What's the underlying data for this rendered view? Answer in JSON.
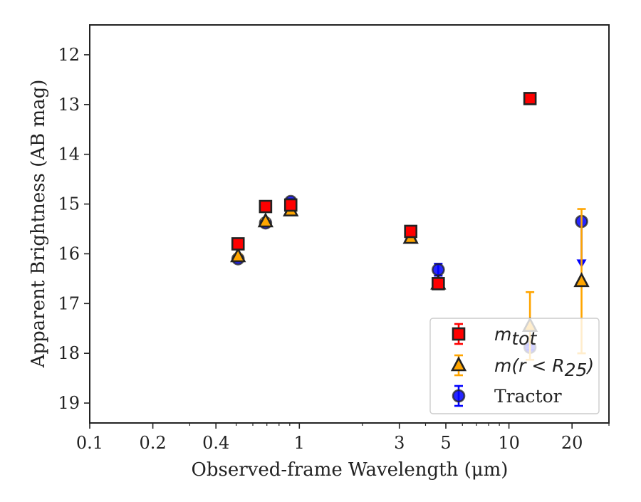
{
  "chart_data": {
    "type": "scatter",
    "xlabel": "Observed-frame Wavelength (μm)",
    "ylabel": "Apparent Brightness (AB mag)",
    "x_scale": "log",
    "xlim": [
      0.1,
      30
    ],
    "ylim": [
      19.4,
      11.4
    ],
    "y_inverted": true,
    "x_ticks": [
      {
        "value": 0.1,
        "label": "0.1"
      },
      {
        "value": 0.2,
        "label": "0.2"
      },
      {
        "value": 0.4,
        "label": "0.4"
      },
      {
        "value": 1,
        "label": "1"
      },
      {
        "value": 3,
        "label": "3"
      },
      {
        "value": 5,
        "label": "5"
      },
      {
        "value": 10,
        "label": "10"
      },
      {
        "value": 20,
        "label": "20"
      }
    ],
    "x_minor_ticks": [
      0.3,
      0.5,
      0.6,
      0.7,
      0.8,
      0.9,
      2,
      4,
      6,
      7,
      8,
      9,
      30
    ],
    "y_ticks": [
      12,
      13,
      14,
      15,
      16,
      17,
      18,
      19
    ],
    "legend_position": "lower right",
    "series": [
      {
        "name": "m_tot",
        "marker": "square",
        "color": "#ff0000",
        "edge": "#222222",
        "points": [
          {
            "x": 0.51,
            "y": 15.8,
            "err": 0.05
          },
          {
            "x": 0.69,
            "y": 15.05,
            "err": 0.05
          },
          {
            "x": 0.91,
            "y": 15.02,
            "err": 0.05
          },
          {
            "x": 3.4,
            "y": 15.55,
            "err": 0.05
          },
          {
            "x": 4.6,
            "y": 16.6,
            "err": 0.05
          },
          {
            "x": 12.6,
            "y": 12.88,
            "err": 0.05
          }
        ]
      },
      {
        "name": "m(r < R25)",
        "marker": "triangle",
        "color": "#ffa500",
        "edge": "#222222",
        "points": [
          {
            "x": 0.51,
            "y": 16.05,
            "err": 0.04
          },
          {
            "x": 0.69,
            "y": 15.35,
            "err": 0.04
          },
          {
            "x": 0.91,
            "y": 15.13,
            "err": 0.04
          },
          {
            "x": 3.4,
            "y": 15.68,
            "err": 0.04
          },
          {
            "x": 4.6,
            "y": 16.6,
            "err": 0.04
          },
          {
            "x": 12.6,
            "y": 17.45,
            "err_up": 0.68,
            "err_down": 0.68
          },
          {
            "x": 22.2,
            "y": 16.55,
            "err_up": 1.45,
            "err_down": 1.45
          }
        ]
      },
      {
        "name": "Tractor",
        "marker": "circle",
        "color": "#0000ff",
        "edge": "#222222",
        "points": [
          {
            "x": 0.51,
            "y": 16.1,
            "err": 0.05
          },
          {
            "x": 0.69,
            "y": 15.38,
            "err": 0.05
          },
          {
            "x": 0.91,
            "y": 14.95,
            "err": 0.05
          },
          {
            "x": 3.4,
            "y": 15.6,
            "err": 0.05
          },
          {
            "x": 4.6,
            "y": 16.32,
            "err": 0.12
          },
          {
            "x": 12.6,
            "y": 17.88,
            "err": 0.05
          },
          {
            "x": 22.2,
            "y": 15.35,
            "upper_limit_to": 16.2
          }
        ]
      }
    ],
    "legend": {
      "entries": [
        {
          "series": "m_tot",
          "base": "m",
          "sub": "tot",
          "suffix": ""
        },
        {
          "series": "m(r < R25)",
          "base": "m(r < R",
          "sub": "25",
          "suffix": ")"
        },
        {
          "series": "Tractor",
          "text": "Tractor"
        }
      ]
    }
  }
}
